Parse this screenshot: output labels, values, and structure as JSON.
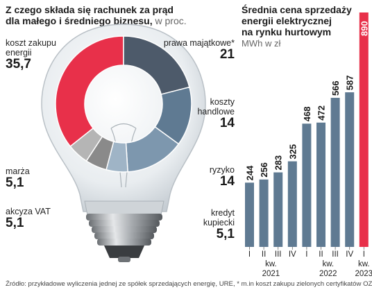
{
  "left_chart": {
    "title_line1": "Z czego składa się rachunek za prąd",
    "title_line2": "dla małego i średniego biznesu,",
    "unit": "w proc.",
    "slices": [
      {
        "label": "koszt zakupu energii",
        "value": 35.7,
        "value_text": "35,7",
        "color": "#e8304a"
      },
      {
        "label": "prawa majątkowe*",
        "value": 21,
        "value_text": "21",
        "color": "#4d5a6a"
      },
      {
        "label": "koszty handlowe",
        "value": 14,
        "value_text": "14",
        "color": "#5f7a92"
      },
      {
        "label": "ryzyko",
        "value": 14,
        "value_text": "14",
        "color": "#7d97ae"
      },
      {
        "label": "kredyt kupiecki",
        "value": 5.1,
        "value_text": "5,1",
        "color": "#9fb4c6"
      },
      {
        "label": "akcyza VAT",
        "value": 5.1,
        "value_text": "5,1",
        "color": "#8a8a8a"
      },
      {
        "label": "marża",
        "value": 5.1,
        "value_text": "5,1",
        "color": "#b5b5b5"
      }
    ]
  },
  "chart_data": [
    {
      "type": "pie",
      "title": "Z czego składa się rachunek za prąd dla małego i średniego biznesu",
      "unit": "w proc.",
      "categories": [
        "koszt zakupu energii",
        "prawa majątkowe*",
        "koszty handlowe",
        "ryzyko",
        "kredyt kupiecki",
        "akcyza VAT",
        "marża"
      ],
      "values": [
        35.7,
        21,
        14,
        14,
        5.1,
        5.1,
        5.1
      ]
    },
    {
      "type": "bar",
      "title": "Średnia cena sprzedaży energii elektrycznej na rynku hurtowym",
      "unit": "MWh w zł",
      "categories": [
        "I 2021",
        "II 2021",
        "III 2021",
        "IV 2021",
        "I 2022",
        "II 2022",
        "III 2022",
        "IV 2022",
        "I 2023"
      ],
      "values": [
        244,
        256,
        283,
        325,
        468,
        472,
        566,
        587,
        890
      ],
      "ylim": [
        0,
        890
      ]
    }
  ],
  "right_chart": {
    "title_line1": "Średnia cena sprzedaży",
    "title_line2": "energii elektrycznej",
    "title_line3": "na rynku hurtowym",
    "unit": "MWh w zł",
    "bars": [
      {
        "q": "I",
        "value": 244,
        "color": "#5f7a92"
      },
      {
        "q": "II",
        "value": 256,
        "color": "#5f7a92"
      },
      {
        "q": "III",
        "value": 283,
        "color": "#5f7a92"
      },
      {
        "q": "IV",
        "value": 325,
        "color": "#5f7a92"
      },
      {
        "q": "I",
        "value": 468,
        "color": "#5f7a92"
      },
      {
        "q": "II",
        "value": 472,
        "color": "#5f7a92"
      },
      {
        "q": "III",
        "value": 566,
        "color": "#5f7a92"
      },
      {
        "q": "IV",
        "value": 587,
        "color": "#5f7a92"
      },
      {
        "q": "I",
        "value": 890,
        "color": "#e8304a"
      }
    ],
    "groups": [
      {
        "kw": "kw.",
        "year": "2021"
      },
      {
        "kw": "kw.",
        "year": "2022"
      },
      {
        "kw": "kw.",
        "year": "2023"
      }
    ]
  },
  "source_text": "Źródło: przykładowe wyliczenia jednej ze spółek sprzedających energię, URE, * m.in koszt zakupu zielonych certyfikatów OZE"
}
